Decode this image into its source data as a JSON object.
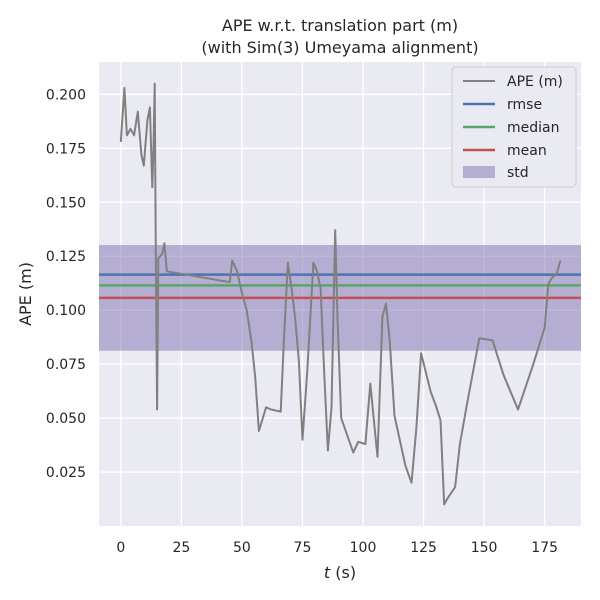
{
  "chart_data": {
    "type": "line",
    "title": [
      "APE w.r.t. translation part (m)",
      "(with Sim(3) Umeyama alignment)"
    ],
    "xlabel_italic": "t",
    "xlabel_rest": " (s)",
    "ylabel": "APE (m)",
    "xlim": [
      -9,
      190
    ],
    "ylim": [
      0.0,
      0.215
    ],
    "xticks": [
      0,
      25,
      50,
      75,
      100,
      125,
      150,
      175
    ],
    "yticks": [
      0.025,
      0.05,
      0.075,
      0.1,
      0.125,
      0.15,
      0.175,
      0.2
    ],
    "ytick_labels": [
      "0.025",
      "0.050",
      "0.075",
      "0.100",
      "0.125",
      "0.150",
      "0.175",
      "0.200"
    ],
    "grid": true,
    "legend_position": "top-right",
    "series": [
      {
        "name": "APE (m)",
        "color": "#808080",
        "x": [
          0,
          1.5,
          2.5,
          4,
          5.5,
          7,
          8.5,
          9.5,
          11,
          12,
          12.5,
          13,
          13.5,
          14,
          14.5,
          15,
          15.5,
          17,
          18,
          19,
          45,
          46,
          48,
          50,
          52,
          54,
          55.5,
          57,
          60,
          62,
          66,
          67.5,
          69,
          70.5,
          72,
          73.5,
          75,
          77,
          79.5,
          81,
          82.5,
          84,
          85.5,
          87,
          88.5,
          89.5,
          91,
          96,
          98,
          101,
          103,
          104.5,
          106,
          108,
          109.5,
          111,
          113,
          117.5,
          120,
          122,
          124,
          128,
          130,
          132,
          133.5,
          135,
          138,
          140,
          143,
          148,
          153.5,
          158,
          164,
          170,
          175,
          176.5,
          178,
          180,
          181.5
        ],
        "y": [
          0.178,
          0.203,
          0.181,
          0.184,
          0.181,
          0.192,
          0.172,
          0.167,
          0.188,
          0.194,
          0.175,
          0.157,
          0.175,
          0.205,
          0.12,
          0.054,
          0.124,
          0.126,
          0.131,
          0.118,
          0.113,
          0.123,
          0.118,
          0.108,
          0.1,
          0.085,
          0.069,
          0.044,
          0.055,
          0.054,
          0.053,
          0.09,
          0.122,
          0.11,
          0.096,
          0.077,
          0.04,
          0.072,
          0.122,
          0.118,
          0.11,
          0.07,
          0.035,
          0.055,
          0.137,
          0.095,
          0.05,
          0.034,
          0.039,
          0.038,
          0.066,
          0.049,
          0.032,
          0.097,
          0.103,
          0.086,
          0.051,
          0.028,
          0.02,
          0.045,
          0.08,
          0.062,
          0.056,
          0.049,
          0.01,
          0.013,
          0.018,
          0.038,
          0.057,
          0.087,
          0.086,
          0.07,
          0.054,
          0.074,
          0.092,
          0.112,
          0.115,
          0.117,
          0.123
        ]
      },
      {
        "name": "rmse",
        "color": "#4c72b0",
        "value": 0.1165
      },
      {
        "name": "median",
        "color": "#55a868",
        "value": 0.1115
      },
      {
        "name": "mean",
        "color": "#c44e52",
        "value": 0.1057
      }
    ],
    "std_band": {
      "name": "std",
      "color": "#8172b2",
      "low": 0.0812,
      "high": 0.1302
    },
    "legend": [
      "APE (m)",
      "rmse",
      "median",
      "mean",
      "std"
    ]
  },
  "style": {
    "background": "#ffffff",
    "plot_background": "#eaeaf2",
    "grid_color": "#ffffff",
    "text_color": "#262626"
  }
}
